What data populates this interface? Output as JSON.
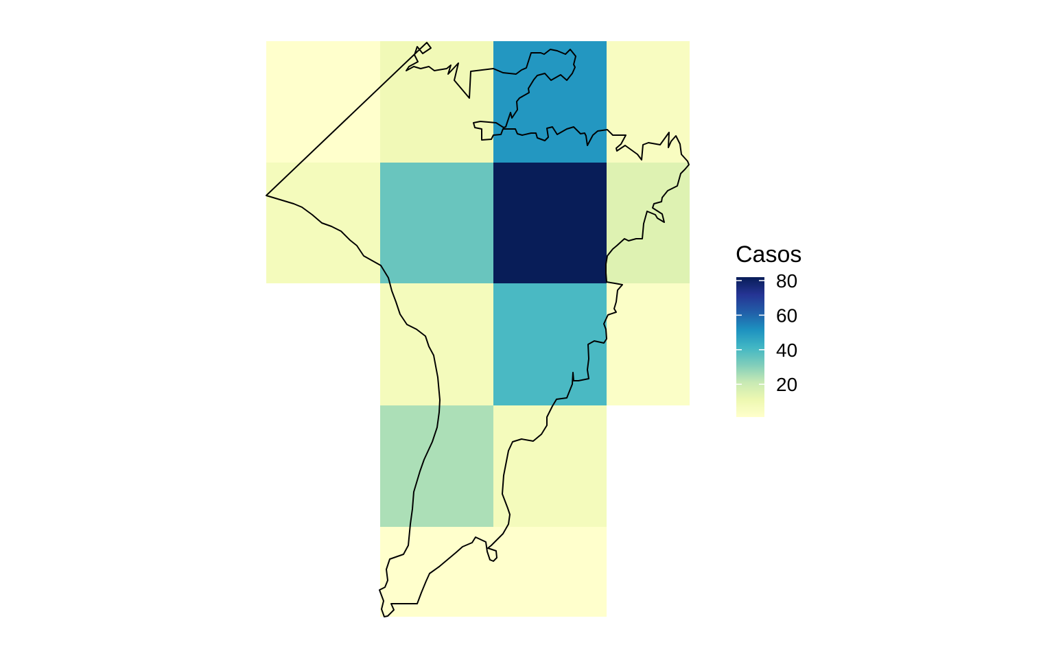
{
  "chart_data": {
    "type": "heatmap",
    "title": "",
    "xlabel": "",
    "ylabel": "",
    "grid": false,
    "legend": {
      "title": "Casos",
      "position": "right",
      "ticks": [
        20,
        40,
        60,
        80
      ],
      "range": [
        1,
        82
      ],
      "colors": [
        "#ffffcc",
        "#edf8b1",
        "#c7e9b4",
        "#7fcdbb",
        "#41b6c4",
        "#1d91c0",
        "#225ea8",
        "#253494",
        "#081d58"
      ]
    },
    "grid_shape": {
      "cols": 4,
      "rows": 5
    },
    "cells": [
      {
        "col": 0,
        "row": 0,
        "value": 1
      },
      {
        "col": 1,
        "row": 0,
        "value": 9
      },
      {
        "col": 2,
        "row": 0,
        "value": 50
      },
      {
        "col": 3,
        "row": 0,
        "value": 5
      },
      {
        "col": 0,
        "row": 1,
        "value": 7
      },
      {
        "col": 1,
        "row": 1,
        "value": 35
      },
      {
        "col": 2,
        "row": 1,
        "value": 82
      },
      {
        "col": 3,
        "row": 1,
        "value": 15
      },
      {
        "col": 1,
        "row": 2,
        "value": 7
      },
      {
        "col": 2,
        "row": 2,
        "value": 40
      },
      {
        "col": 3,
        "row": 2,
        "value": 3
      },
      {
        "col": 1,
        "row": 3,
        "value": 25
      },
      {
        "col": 2,
        "row": 3,
        "value": 7
      },
      {
        "col": 1,
        "row": 4,
        "value": 1
      },
      {
        "col": 2,
        "row": 4,
        "value": 1
      }
    ]
  }
}
